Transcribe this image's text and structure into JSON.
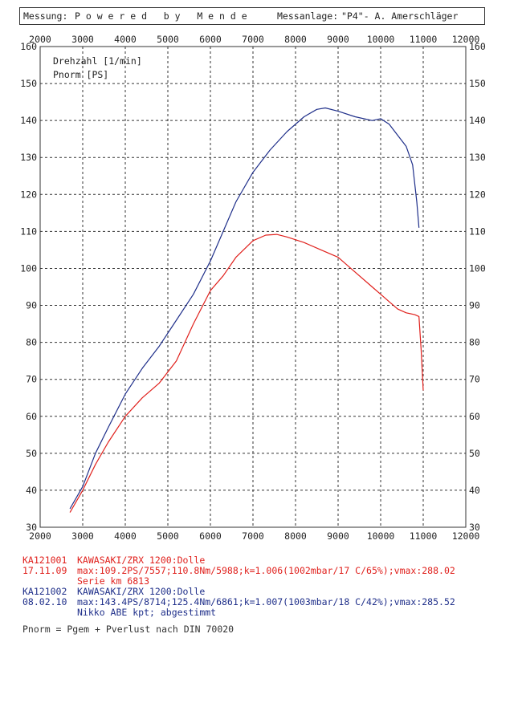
{
  "header": {
    "left_label": "Messung:",
    "left_value": "P o w e r e d   b y   M e n d e",
    "right_label": "Messanlage:",
    "right_value": "\"P4\"- A. Amerschläger"
  },
  "chart_data": {
    "type": "line",
    "title": "",
    "xlabel": "Drehzahl [1/min]",
    "ylabel": "Pnorm [PS]",
    "xlim": [
      2000,
      12000
    ],
    "ylim": [
      30,
      160
    ],
    "x_ticks": [
      2000,
      3000,
      4000,
      5000,
      6000,
      7000,
      8000,
      9000,
      10000,
      11000,
      12000
    ],
    "y_ticks": [
      30,
      40,
      50,
      60,
      70,
      80,
      90,
      100,
      110,
      120,
      130,
      140,
      150,
      160
    ],
    "grid": true,
    "legend": [
      "Drehzahl [1/min]",
      "Pnorm [PS]"
    ],
    "series": [
      {
        "name": "KA121002",
        "color": "#1f2f8a",
        "x": [
          2700,
          3000,
          3300,
          3600,
          4000,
          4400,
          4800,
          5200,
          5600,
          6000,
          6300,
          6600,
          7000,
          7400,
          7800,
          8200,
          8500,
          8700,
          9000,
          9400,
          9800,
          10000,
          10200,
          10400,
          10600,
          10750,
          10850,
          10900
        ],
        "values": [
          35,
          41,
          50,
          57,
          66,
          73,
          79,
          86,
          93,
          102,
          110,
          118,
          126,
          132,
          137,
          141,
          143,
          143.4,
          142.5,
          141,
          140,
          140.5,
          139,
          136,
          133,
          128,
          118,
          111
        ]
      },
      {
        "name": "KA121001",
        "color": "#e0201c",
        "x": [
          2700,
          3000,
          3300,
          3600,
          4000,
          4400,
          4800,
          5200,
          5600,
          6000,
          6300,
          6600,
          7000,
          7300,
          7557,
          7800,
          8200,
          8600,
          9000,
          9400,
          9800,
          10000,
          10200,
          10400,
          10600,
          10800,
          10900,
          10950,
          11000
        ],
        "values": [
          34,
          40,
          47,
          53,
          60,
          65,
          69,
          75,
          85,
          94,
          98,
          103,
          107.5,
          109,
          109.2,
          108.5,
          107,
          105,
          103,
          99,
          95,
          93,
          91,
          89,
          88,
          87.5,
          87,
          78,
          67
        ]
      }
    ]
  },
  "runs": [
    {
      "color": "red",
      "id": "KA121001",
      "date": "17.11.09",
      "vehicle": "KAWASAKI/ZRX 1200:Dolle",
      "max": "max:109.2PS/7557;110.8Nm/5988;k=1.006(1002mbar/17 C/65%);vmax:288.02",
      "note": "Serie km 6813"
    },
    {
      "color": "blue",
      "id": "KA121002",
      "date": "08.02.10",
      "vehicle": "KAWASAKI/ZRX 1200:Dolle",
      "max": "max:143.4PS/8714;125.4Nm/6861;k=1.007(1003mbar/18 C/42%);vmax:285.52",
      "note": "Nikko ABE kpt; abgestimmt"
    }
  ],
  "footnote": "Pnorm = Pgem + Pverlust nach DIN 70020"
}
